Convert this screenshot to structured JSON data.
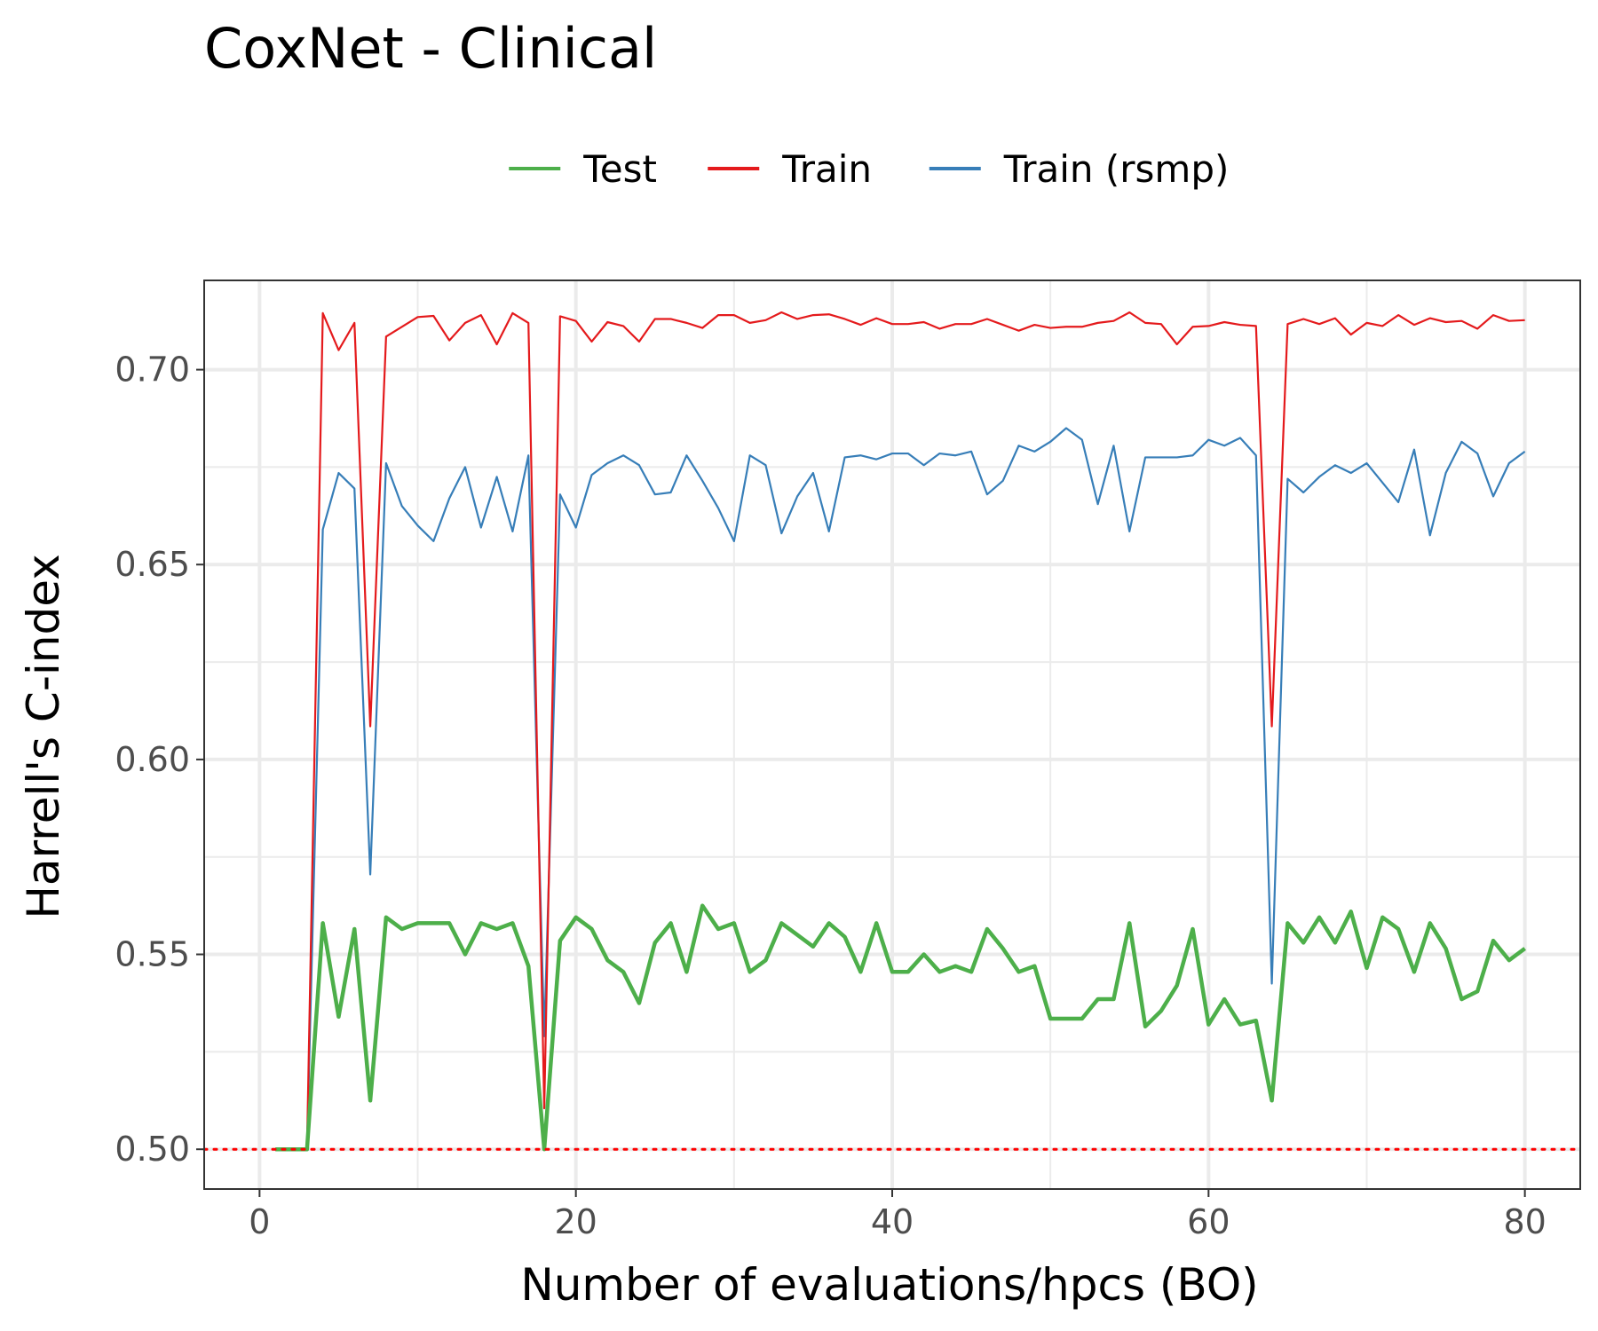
{
  "chart_data": {
    "type": "line",
    "title": "CoxNet - Clinical",
    "xlabel": "Number of evaluations/hpcs (BO)",
    "ylabel": "Harrell's C-index",
    "xlim": [
      -3.5,
      83.5
    ],
    "ylim": [
      0.4898,
      0.7229
    ],
    "x_ticks": [
      0,
      20,
      40,
      60,
      80
    ],
    "y_ticks": [
      0.5,
      0.55,
      0.6,
      0.65,
      0.7
    ],
    "x_tick_labels": [
      "0",
      "20",
      "40",
      "60",
      "80"
    ],
    "y_tick_labels": [
      "0.50",
      "0.55",
      "0.60",
      "0.65",
      "0.70"
    ],
    "grid": true,
    "legend_position": "top",
    "reference_line": {
      "y": 0.5,
      "style": "dotted",
      "color": "#ff0000"
    },
    "x": [
      1,
      2,
      3,
      4,
      5,
      6,
      7,
      8,
      9,
      10,
      11,
      12,
      13,
      14,
      15,
      16,
      17,
      18,
      19,
      20,
      21,
      22,
      23,
      24,
      25,
      26,
      27,
      28,
      29,
      30,
      31,
      32,
      33,
      34,
      35,
      36,
      37,
      38,
      39,
      40,
      41,
      42,
      43,
      44,
      45,
      46,
      47,
      48,
      49,
      50,
      51,
      52,
      53,
      54,
      55,
      56,
      57,
      58,
      59,
      60,
      61,
      62,
      63,
      64,
      65,
      66,
      67,
      68,
      69,
      70,
      71,
      72,
      73,
      74,
      75,
      76,
      77,
      78,
      79,
      80
    ],
    "series": [
      {
        "name": "Test",
        "color": "#4daf4a",
        "values": [
          0.5,
          0.5,
          0.5,
          0.558,
          0.534,
          0.5565,
          0.5125,
          0.5595,
          0.5565,
          0.558,
          0.558,
          0.558,
          0.55,
          0.558,
          0.5565,
          0.558,
          0.547,
          0.5,
          0.5535,
          0.5595,
          0.5565,
          0.5485,
          0.5455,
          0.5375,
          0.553,
          0.558,
          0.5455,
          0.5625,
          0.5565,
          0.558,
          0.5455,
          0.5485,
          0.558,
          0.555,
          0.552,
          0.558,
          0.5545,
          0.5455,
          0.558,
          0.5455,
          0.5455,
          0.55,
          0.5455,
          0.547,
          0.5455,
          0.5565,
          0.5515,
          0.5455,
          0.547,
          0.5335,
          0.5335,
          0.5335,
          0.5385,
          0.5385,
          0.558,
          0.5315,
          0.5355,
          0.542,
          0.5565,
          0.532,
          0.5385,
          0.532,
          0.533,
          0.5125,
          0.558,
          0.553,
          0.5595,
          0.553,
          0.561,
          0.5465,
          0.5595,
          0.5565,
          0.5455,
          0.558,
          0.5515,
          0.5385,
          0.5405,
          0.5535,
          0.5485,
          0.5515
        ]
      },
      {
        "name": "Train",
        "color": "#e41a1c",
        "values": [
          0.5,
          0.5,
          0.5,
          0.7145,
          0.705,
          0.712,
          0.6085,
          0.7085,
          0.711,
          0.7135,
          0.7138,
          0.7075,
          0.712,
          0.714,
          0.7065,
          0.7145,
          0.712,
          0.5105,
          0.7137,
          0.7125,
          0.7072,
          0.7122,
          0.7112,
          0.7072,
          0.713,
          0.713,
          0.712,
          0.7107,
          0.714,
          0.714,
          0.712,
          0.7127,
          0.7147,
          0.713,
          0.714,
          0.7142,
          0.713,
          0.7115,
          0.7132,
          0.7117,
          0.7117,
          0.7122,
          0.7105,
          0.7117,
          0.7117,
          0.713,
          0.7115,
          0.71,
          0.7115,
          0.7107,
          0.711,
          0.711,
          0.712,
          0.7125,
          0.7147,
          0.712,
          0.7117,
          0.7065,
          0.711,
          0.7112,
          0.7122,
          0.7115,
          0.7112,
          0.6085,
          0.7117,
          0.713,
          0.7117,
          0.7132,
          0.709,
          0.712,
          0.7112,
          0.714,
          0.7115,
          0.7132,
          0.7122,
          0.7125,
          0.7105,
          0.714,
          0.7125,
          0.7127
        ]
      },
      {
        "name": "Train (rsmp)",
        "color": "#377eb8",
        "values": [
          0.5,
          0.5,
          0.5,
          0.659,
          0.6735,
          0.6695,
          0.5705,
          0.676,
          0.665,
          0.66,
          0.656,
          0.667,
          0.675,
          0.6595,
          0.6725,
          0.6585,
          0.678,
          0.529,
          0.668,
          0.6595,
          0.673,
          0.676,
          0.678,
          0.6755,
          0.668,
          0.6685,
          0.678,
          0.6715,
          0.6645,
          0.656,
          0.678,
          0.6755,
          0.658,
          0.6675,
          0.6735,
          0.6585,
          0.6775,
          0.678,
          0.677,
          0.6785,
          0.6785,
          0.6755,
          0.6785,
          0.678,
          0.679,
          0.668,
          0.6715,
          0.6805,
          0.679,
          0.6815,
          0.685,
          0.682,
          0.6655,
          0.6805,
          0.6585,
          0.6775,
          0.6775,
          0.6775,
          0.678,
          0.682,
          0.6805,
          0.6825,
          0.678,
          0.5425,
          0.672,
          0.6685,
          0.6725,
          0.6755,
          0.6735,
          0.676,
          0.671,
          0.666,
          0.6795,
          0.6575,
          0.6735,
          0.6815,
          0.6785,
          0.6675,
          0.676,
          0.679
        ]
      }
    ]
  }
}
